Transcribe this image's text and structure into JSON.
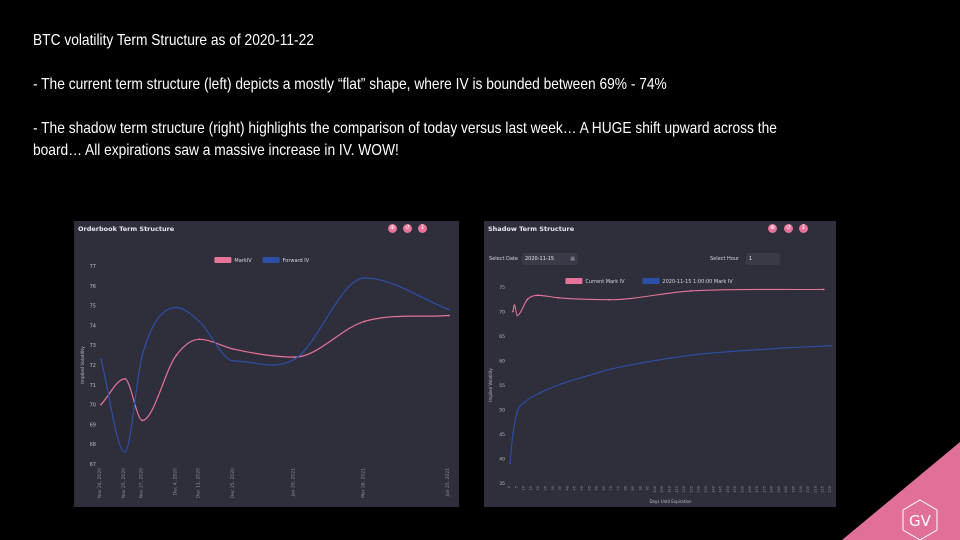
{
  "slide": {
    "title": "BTC volatility Term Structure as of 2020-11-22",
    "bullet1": "- The current term structure (left) depicts a mostly “flat” shape, where IV is bounded between 69% - 74%",
    "bullet2": "- The shadow term structure (right) highlights the comparison of today versus last week… A HUGE shift upward across the board… All expirations saw a massive increase in IV. WOW!",
    "logo_text": "GV"
  },
  "colors": {
    "accent": "#e6739a",
    "blue": "#2d4fa8",
    "panel": "#2f2e3b",
    "logo": "#e0709a"
  },
  "left_panel": {
    "title": "Orderbook Term Structure",
    "toolbar": [
      "zoom-in-icon",
      "reset-icon",
      "download-icon"
    ]
  },
  "right_panel": {
    "title": "Shadow Term Structure",
    "select_date_label": "Select Date",
    "select_date_value": "2020-11-15",
    "select_hour_label": "Select Hour",
    "select_hour_value": "1",
    "toolbar": [
      "zoom-in-icon",
      "reset-icon",
      "download-icon"
    ]
  },
  "chart_data": [
    {
      "type": "line",
      "title": "Orderbook Term Structure",
      "ylabel": "Implied Volatility",
      "xlabel": "",
      "ylim": [
        67,
        77
      ],
      "yticks": [
        67,
        68,
        69,
        70,
        71,
        72,
        73,
        74,
        75,
        76,
        77
      ],
      "xticks": [
        "Nov 24, 2020",
        "Nov 25, 2020",
        "Nov 27, 2020",
        "Dec 4, 2020",
        "Dec 11, 2020",
        "Dec 25, 2020",
        "Jan 29, 2021",
        "Mar 26, 2021",
        "Jun 25, 2021"
      ],
      "x_days": [
        2,
        3,
        5,
        12,
        19,
        33,
        68,
        124,
        215
      ],
      "legend_position": "top",
      "grid": false,
      "series": [
        {
          "name": "MarkIV",
          "color": "#e6739a",
          "values": [
            70.0,
            71.3,
            69.2,
            72.5,
            73.3,
            72.8,
            72.4,
            74.2,
            74.5
          ]
        },
        {
          "name": "Forward IV",
          "color": "#2d4fa8",
          "values": [
            72.3,
            67.6,
            72.5,
            74.9,
            74.2,
            72.2,
            72.3,
            76.4,
            74.8
          ]
        }
      ]
    },
    {
      "type": "line",
      "title": "Shadow Term Structure",
      "ylabel": "Implied Volatility",
      "xlabel": "Days Until Expiration",
      "ylim": [
        35,
        75
      ],
      "yticks": [
        35,
        40,
        45,
        50,
        55,
        60,
        65,
        70,
        75
      ],
      "xticks": [
        "0",
        "5",
        "10",
        "15",
        "20",
        "25",
        "30",
        "35",
        "40",
        "45",
        "50",
        "55",
        "60",
        "65",
        "70",
        "75",
        "80",
        "85",
        "90",
        "95",
        "100",
        "105",
        "110",
        "115",
        "120",
        "125",
        "130",
        "135",
        "140",
        "145",
        "150",
        "155",
        "160",
        "165",
        "170",
        "175",
        "180",
        "185",
        "190",
        "195",
        "200",
        "205",
        "210",
        "215",
        "220"
      ],
      "legend_position": "top",
      "grid": false,
      "series": [
        {
          "name": "Current Mark IV",
          "color": "#e6739a",
          "x": [
            2,
            3,
            5,
            12,
            19,
            33,
            68,
            124,
            215
          ],
          "values": [
            70.0,
            71.3,
            69.2,
            72.5,
            73.3,
            72.8,
            72.4,
            74.2,
            74.5
          ]
        },
        {
          "name": "2020-11-15 1:00:00 Mark IV",
          "color": "#2d4fa8",
          "x": [
            0,
            2,
            5,
            10,
            20,
            35,
            50,
            70,
            90,
            110,
            130,
            150,
            170,
            190,
            220
          ],
          "values": [
            39.0,
            45.0,
            49.5,
            51.5,
            53.3,
            55.2,
            56.6,
            58.3,
            59.5,
            60.5,
            61.3,
            61.8,
            62.2,
            62.6,
            63.0
          ]
        }
      ]
    }
  ]
}
